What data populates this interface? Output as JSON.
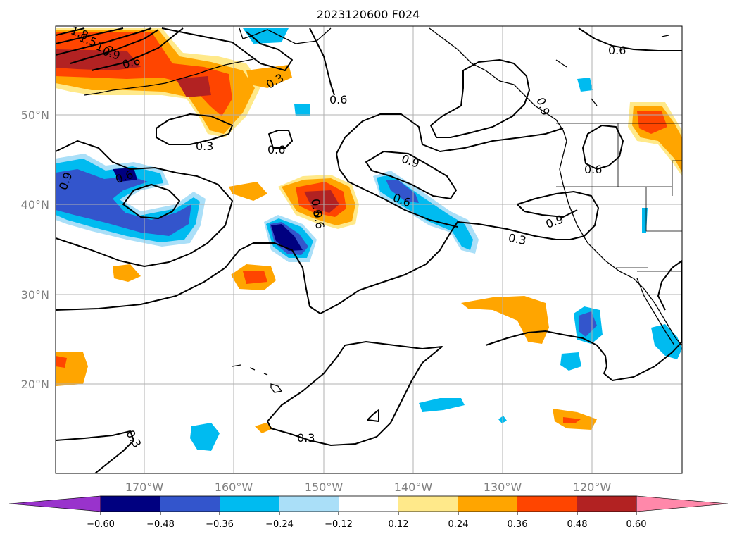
{
  "title": "2023120600 F024",
  "lat_labels": [
    "50°N",
    "40°N",
    "30°N",
    "20°N"
  ],
  "lon_labels": [
    "170°W",
    "160°W",
    "150°W",
    "140°W",
    "130°W",
    "120°W"
  ],
  "colorbar": {
    "tick_labels": [
      "−0.60",
      "−0.48",
      "−0.36",
      "−0.24",
      "−0.12",
      "0.12",
      "0.24",
      "0.36",
      "0.48",
      "0.60"
    ],
    "colors": [
      "#9933cc",
      "#000080",
      "#3355cc",
      "#00bbf0",
      "#aadff8",
      "#ffffff",
      "#ffe98a",
      "#ffa500",
      "#ff4500",
      "#b22222",
      "#ff88aa"
    ]
  },
  "contour_labels": [
    "1.8",
    "1.5",
    "1.2",
    "0.9",
    "0.6",
    "0.3",
    "0.3",
    "0.6",
    "0.6",
    "0.6",
    "0.9",
    "0.6",
    "0.6",
    "0.9",
    "0.6",
    "0.9",
    "0.3",
    "0.3",
    "0.3",
    "0.9",
    "0.6",
    "0.6"
  ]
}
